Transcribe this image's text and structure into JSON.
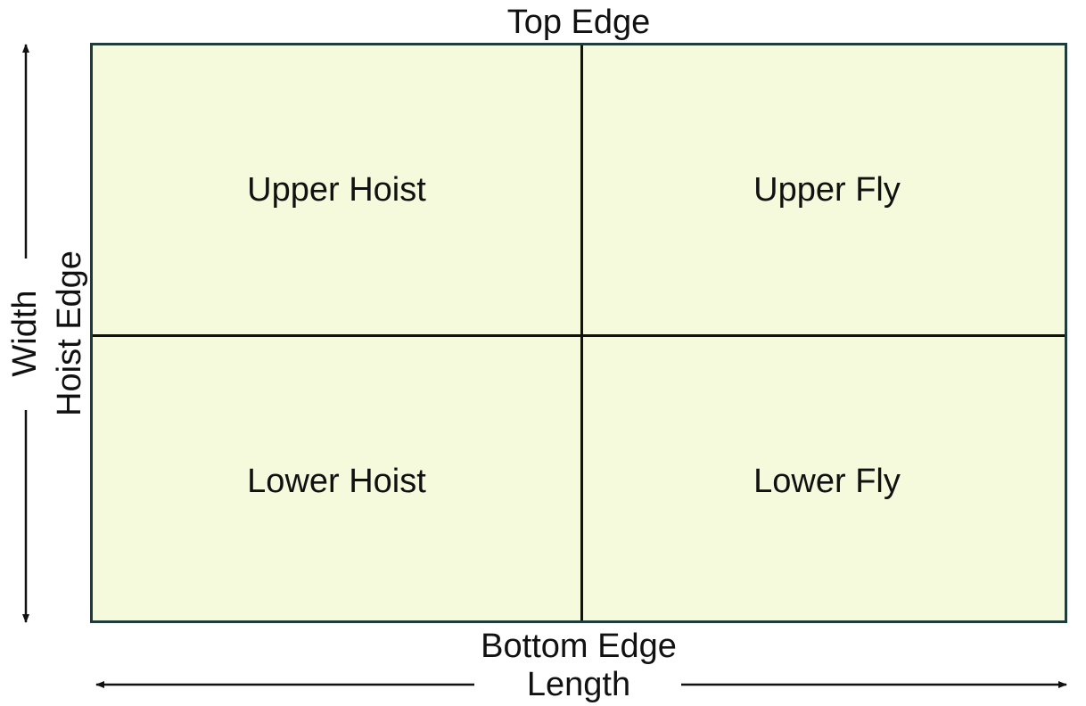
{
  "diagram": {
    "top_edge": "Top Edge",
    "bottom_edge": "Bottom Edge",
    "hoist_edge": "Hoist Edge",
    "length": "Length",
    "width": "Width",
    "quadrants": {
      "upper_hoist": "Upper Hoist",
      "upper_fly": "Upper Fly",
      "lower_hoist": "Lower Hoist",
      "lower_fly": "Lower Fly"
    }
  },
  "colors": {
    "flag_fill": "#f5fadc",
    "flag_border": "#1f3b3a",
    "line": "#111111"
  }
}
